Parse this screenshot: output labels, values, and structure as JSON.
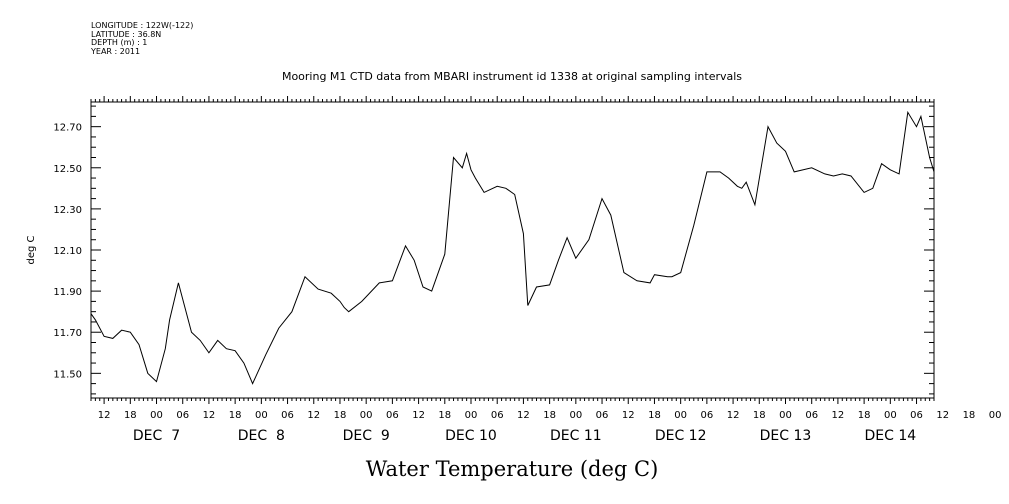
{
  "meta": {
    "longitude": "LONGITUDE : 122W(-122)",
    "latitude": "LATITUDE : 36.8N",
    "depth": "DEPTH (m) : 1",
    "year": "YEAR : 2011"
  },
  "chart_data": {
    "type": "line",
    "title": "Mooring M1 CTD data from MBARI instrument id 1338 at original sampling intervals",
    "xlabel": "Water Temperature (deg C)",
    "ylabel": "deg C",
    "xlim": [
      "2011-12-06T09:00",
      "2011-12-14T10:00"
    ],
    "ylim": [
      11.38,
      12.82
    ],
    "yticks": [
      "11.50",
      "11.70",
      "11.90",
      "12.10",
      "12.30",
      "12.50",
      "12.70"
    ],
    "hour_ticks": [
      "12",
      "18",
      "00",
      "06",
      "12",
      "18",
      "00",
      "06",
      "12",
      "18",
      "00",
      "06",
      "12",
      "18",
      "00",
      "06",
      "12",
      "18",
      "00",
      "06",
      "12",
      "18",
      "00",
      "06",
      "12",
      "18",
      "00",
      "06",
      "12",
      "18",
      "00",
      "06",
      "12",
      "18",
      "00",
      "06"
    ],
    "day_labels": [
      "DEC  7",
      "DEC  8",
      "DEC  9",
      "DEC 10",
      "DEC 11",
      "DEC 12",
      "DEC 13",
      "DEC 14"
    ],
    "series": [
      {
        "x": [
          "2011-12-06T09:00",
          "2011-12-06T10:00",
          "2011-12-06T12:00",
          "2011-12-06T14:00",
          "2011-12-06T16:00",
          "2011-12-06T18:00",
          "2011-12-06T20:00",
          "2011-12-06T22:00",
          "2011-12-07T00:00",
          "2011-12-07T02:00",
          "2011-12-07T03:00",
          "2011-12-07T05:00",
          "2011-12-07T08:00",
          "2011-12-07T10:00",
          "2011-12-07T12:00",
          "2011-12-07T14:00",
          "2011-12-07T16:00",
          "2011-12-07T18:00",
          "2011-12-07T20:00",
          "2011-12-07T22:00",
          "2011-12-08T01:00",
          "2011-12-08T04:00",
          "2011-12-08T07:00",
          "2011-12-08T10:00",
          "2011-12-08T13:00",
          "2011-12-08T16:00",
          "2011-12-08T18:00",
          "2011-12-08T19:00",
          "2011-12-08T20:00",
          "2011-12-08T23:00",
          "2011-12-09T03:00",
          "2011-12-09T06:00",
          "2011-12-09T09:00",
          "2011-12-09T11:00",
          "2011-12-09T13:00",
          "2011-12-09T15:00",
          "2011-12-09T18:00",
          "2011-12-09T20:00",
          "2011-12-09T22:00",
          "2011-12-09T23:00",
          "2011-12-10T00:00",
          "2011-12-10T01:00",
          "2011-12-10T03:00",
          "2011-12-10T06:00",
          "2011-12-10T08:00",
          "2011-12-10T10:00",
          "2011-12-10T12:00",
          "2011-12-10T13:00",
          "2011-12-10T15:00",
          "2011-12-10T18:00",
          "2011-12-10T20:00",
          "2011-12-10T22:00",
          "2011-12-11T00:00",
          "2011-12-11T03:00",
          "2011-12-11T06:00",
          "2011-12-11T08:00",
          "2011-12-11T11:00",
          "2011-12-11T14:00",
          "2011-12-11T17:00",
          "2011-12-11T18:00",
          "2011-12-11T21:00",
          "2011-12-11T22:00",
          "2011-12-12T00:00",
          "2011-12-12T03:00",
          "2011-12-12T06:00",
          "2011-12-12T09:00",
          "2011-12-12T11:00",
          "2011-12-12T13:00",
          "2011-12-12T14:00",
          "2011-12-12T15:00",
          "2011-12-12T17:00",
          "2011-12-12T20:00",
          "2011-12-12T22:00",
          "2011-12-13T00:00",
          "2011-12-13T02:00",
          "2011-12-13T06:00",
          "2011-12-13T09:00",
          "2011-12-13T11:00",
          "2011-12-13T13:00",
          "2011-12-13T15:00",
          "2011-12-13T18:00",
          "2011-12-13T20:00",
          "2011-12-13T22:00",
          "2011-12-14T00:00",
          "2011-12-14T02:00",
          "2011-12-14T04:00",
          "2011-12-14T06:00",
          "2011-12-14T07:00",
          "2011-12-14T09:00",
          "2011-12-14T10:00"
        ],
        "values": [
          11.79,
          11.76,
          11.68,
          11.67,
          11.71,
          11.7,
          11.64,
          11.5,
          11.46,
          11.62,
          11.76,
          11.94,
          11.7,
          11.66,
          11.6,
          11.66,
          11.62,
          11.61,
          11.55,
          11.45,
          11.59,
          11.72,
          11.8,
          11.97,
          11.91,
          11.89,
          11.85,
          11.82,
          11.8,
          11.85,
          11.94,
          11.95,
          12.12,
          12.05,
          11.92,
          11.9,
          12.08,
          12.55,
          12.5,
          12.57,
          12.49,
          12.45,
          12.38,
          12.41,
          12.4,
          12.37,
          12.18,
          11.83,
          11.92,
          11.93,
          12.05,
          12.16,
          12.06,
          12.15,
          12.35,
          12.27,
          11.99,
          11.95,
          11.94,
          11.98,
          11.97,
          11.97,
          11.99,
          12.22,
          12.48,
          12.48,
          12.45,
          12.41,
          12.4,
          12.43,
          12.32,
          12.7,
          12.62,
          12.58,
          12.48,
          12.5,
          12.47,
          12.46,
          12.47,
          12.46,
          12.38,
          12.4,
          12.52,
          12.49,
          12.47,
          12.77,
          12.7,
          12.75,
          12.55,
          12.48
        ]
      }
    ]
  }
}
